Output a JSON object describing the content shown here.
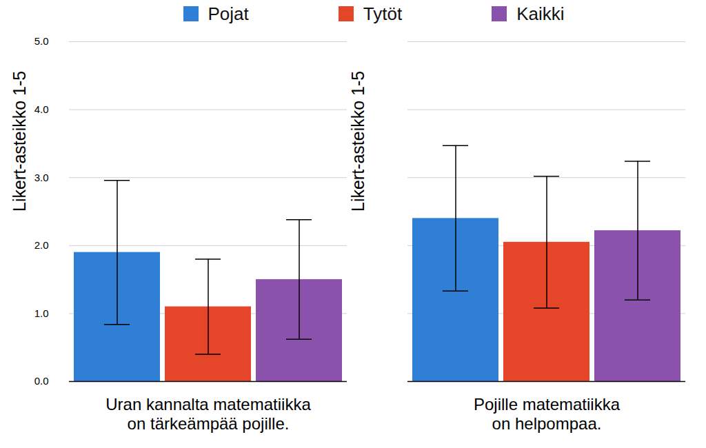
{
  "chart_data": {
    "type": "bar",
    "categories": [
      "Uran kannalta matematiikka\non tärkeämpää pojille.",
      "Pojille matematiikka\non helpompaa."
    ],
    "series": [
      {
        "name": "Pojat",
        "color": "#2f7fd6",
        "values": [
          1.9,
          2.4
        ],
        "errors": [
          1.06,
          1.07
        ]
      },
      {
        "name": "Tytöt",
        "color": "#e5462a",
        "values": [
          1.1,
          2.05
        ],
        "errors": [
          0.7,
          0.97
        ]
      },
      {
        "name": "Kaikki",
        "color": "#8b52ad",
        "values": [
          1.5,
          2.22
        ],
        "errors": [
          0.88,
          1.02
        ]
      }
    ],
    "y_label": "Likert-asteikko 1-5",
    "ylim": [
      0,
      5
    ],
    "yticks": [
      0,
      1,
      2,
      3,
      4,
      5
    ],
    "grid": true,
    "legend": "top"
  }
}
